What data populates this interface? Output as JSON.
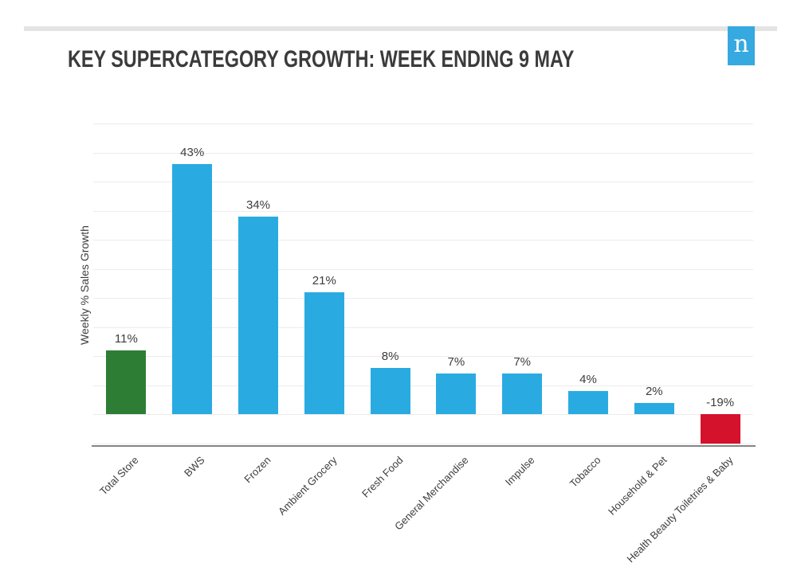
{
  "header": {
    "title": "KEY SUPERCATEGORY GROWTH: WEEK ENDING 9 MAY",
    "logo_letter": "n",
    "logo_color": "#36a9e1"
  },
  "colors": {
    "bar_default": "#29abe2",
    "bar_total_store": "#2e7d35",
    "bar_negative": "#d4122b",
    "gridline": "#ececec",
    "axis_line": "#848484",
    "text": "#3d3d3d"
  },
  "chart_data": {
    "type": "bar",
    "title": "KEY SUPERCATEGORY GROWTH: WEEK ENDING 9 MAY",
    "xlabel": "",
    "ylabel": "Weekly % Sales Growth",
    "categories": [
      "Total Store",
      "BWS",
      "Frozen",
      "Ambient Grocery",
      "Fresh Food",
      "General Merchandise",
      "Impulse",
      "Tobacco",
      "Household & Pet",
      "Health Beauty Toiletries & Baby"
    ],
    "values": [
      11,
      43,
      34,
      21,
      8,
      7,
      7,
      4,
      2,
      -19
    ],
    "data_labels": [
      "11%",
      "43%",
      "34%",
      "21%",
      "8%",
      "7%",
      "7%",
      "4%",
      "2%",
      "-19%"
    ],
    "bar_colors": [
      "#2e7d35",
      "#29abe2",
      "#29abe2",
      "#29abe2",
      "#29abe2",
      "#29abe2",
      "#29abe2",
      "#29abe2",
      "#29abe2",
      "#d4122b"
    ],
    "ylim": [
      -5,
      50
    ],
    "gridline_step": 5,
    "grid": true,
    "legend": false,
    "note": "negative bar drawn clipped at axis minimum while labeled -19%"
  }
}
